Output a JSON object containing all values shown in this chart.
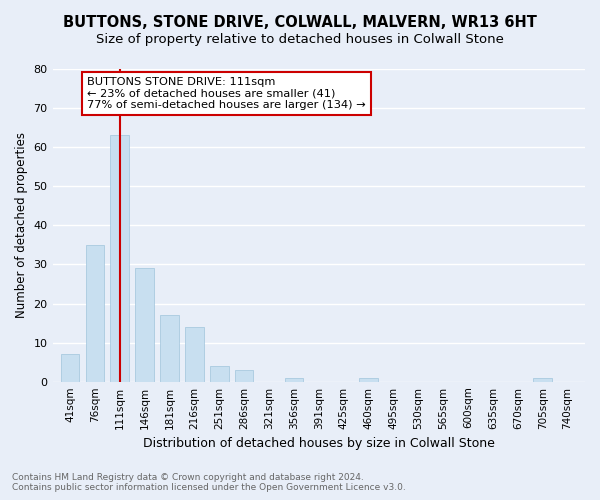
{
  "title": "BUTTONS, STONE DRIVE, COLWALL, MALVERN, WR13 6HT",
  "subtitle": "Size of property relative to detached houses in Colwall Stone",
  "xlabel": "Distribution of detached houses by size in Colwall Stone",
  "ylabel": "Number of detached properties",
  "bar_labels": [
    "41sqm",
    "76sqm",
    "111sqm",
    "146sqm",
    "181sqm",
    "216sqm",
    "251sqm",
    "286sqm",
    "321sqm",
    "356sqm",
    "391sqm",
    "425sqm",
    "460sqm",
    "495sqm",
    "530sqm",
    "565sqm",
    "600sqm",
    "635sqm",
    "670sqm",
    "705sqm",
    "740sqm"
  ],
  "bar_values": [
    7,
    35,
    63,
    29,
    17,
    14,
    4,
    3,
    0,
    1,
    0,
    0,
    1,
    0,
    0,
    0,
    0,
    0,
    0,
    1,
    0
  ],
  "bar_color": "#c8dff0",
  "highlight_index": 2,
  "highlight_color": "#cc0000",
  "ylim": [
    0,
    80
  ],
  "yticks": [
    0,
    10,
    20,
    30,
    40,
    50,
    60,
    70,
    80
  ],
  "annotation_title": "BUTTONS STONE DRIVE: 111sqm",
  "annotation_line1": "← 23% of detached houses are smaller (41)",
  "annotation_line2": "77% of semi-detached houses are larger (134) →",
  "annotation_box_color": "#ffffff",
  "annotation_box_edge": "#cc0000",
  "footnote1": "Contains HM Land Registry data © Crown copyright and database right 2024.",
  "footnote2": "Contains public sector information licensed under the Open Government Licence v3.0.",
  "bg_color": "#e8eef8",
  "grid_color": "#ffffff",
  "title_fontsize": 10.5,
  "subtitle_fontsize": 9.5,
  "bar_width": 0.75
}
